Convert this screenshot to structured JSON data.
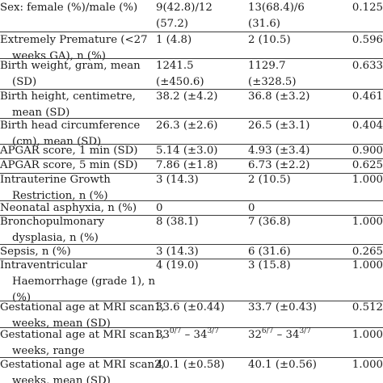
{
  "table": {
    "rows": [
      {
        "label": [
          "Sex: female (%)/male (%)"
        ],
        "group1": [
          "9(42.8)/12",
          "(57.2)"
        ],
        "group2": [
          "13(68.4)/6",
          "(31.6)"
        ],
        "p": "0.125"
      },
      {
        "label": [
          "Extremely Premature (<27",
          "weeks GA), n (%)"
        ],
        "group1": [
          "1 (4.8)"
        ],
        "group2": [
          "2 (10.5)"
        ],
        "p": "0.596"
      },
      {
        "label": [
          "Birth weight, gram, mean",
          "(SD)"
        ],
        "group1": [
          "1241.5",
          "(±450.6)"
        ],
        "group2": [
          "1129.7",
          "(±328.5)"
        ],
        "p": "0.633"
      },
      {
        "label": [
          "Birth height, centimetre,",
          "mean (SD)"
        ],
        "group1": [
          "38.2 (±4.2)"
        ],
        "group2": [
          "36.8 (±3.2)"
        ],
        "p": "0.461"
      },
      {
        "label": [
          "Birth head circumference",
          "(cm), mean (SD)"
        ],
        "group1": [
          "26.3 (±2.6)"
        ],
        "group2": [
          "26.5 (±3.1)"
        ],
        "p": "0.404"
      },
      {
        "label": [
          "APGAR score, 1 min (SD)"
        ],
        "group1": [
          "5.14 (±3.0)"
        ],
        "group2": [
          "4.93 (±3.4)"
        ],
        "p": "0.900"
      },
      {
        "label": [
          "APGAR score, 5 min (SD)"
        ],
        "group1": [
          "7.86 (±1.8)"
        ],
        "group2": [
          "6.73 (±2.2)"
        ],
        "p": "0.625"
      },
      {
        "label": [
          "Intrauterine Growth",
          "Restriction, n (%)"
        ],
        "group1": [
          "3 (14.3)"
        ],
        "group2": [
          "2 (10.5)"
        ],
        "p": "1.000"
      },
      {
        "label": [
          "Neonatal asphyxia, n (%)"
        ],
        "group1": [
          "0"
        ],
        "group2": [
          "0"
        ],
        "p": ""
      },
      {
        "label": [
          "Bronchopulmonary",
          "dysplasia, n (%)"
        ],
        "group1": [
          "8 (38.1)"
        ],
        "group2": [
          "7 (36.8)"
        ],
        "p": "1.000"
      },
      {
        "label": [
          "Sepsis, n (%)"
        ],
        "group1": [
          "3 (14.3)"
        ],
        "group2": [
          "6 (31.6)"
        ],
        "p": "0.265"
      },
      {
        "label": [
          "Intraventricular",
          "Haemorrhage (grade 1), n",
          "(%)"
        ],
        "group1": [
          "4 (19.0)"
        ],
        "group2": [
          "3 (15.8)"
        ],
        "p": "1.000"
      },
      {
        "label": [
          "Gestational age at MRI scan1,",
          "weeks, mean (SD)"
        ],
        "group1": [
          "33.6 (±0.44)"
        ],
        "group2": [
          "33.7 (±0.43)"
        ],
        "p": "0.512"
      },
      {
        "label": [
          "Gestational age at MRI scan1,",
          "weeks, range"
        ],
        "group1_range": {
          "a": "33",
          "a_sup": "0/7",
          "dash": " – ",
          "b": "34",
          "b_sup": "3/7"
        },
        "group2_range": {
          "a": "32",
          "a_sup": "6/7",
          "dash": " – ",
          "b": "34",
          "b_sup": "3/7"
        },
        "p": "1.000"
      },
      {
        "label": [
          "Gestational age at MRI scan2,",
          "weeks, mean (SD)"
        ],
        "group1": [
          "40.1 (±0.58)"
        ],
        "group2": [
          "40.1 (±0.56)"
        ],
        "p": "1.000"
      }
    ]
  }
}
